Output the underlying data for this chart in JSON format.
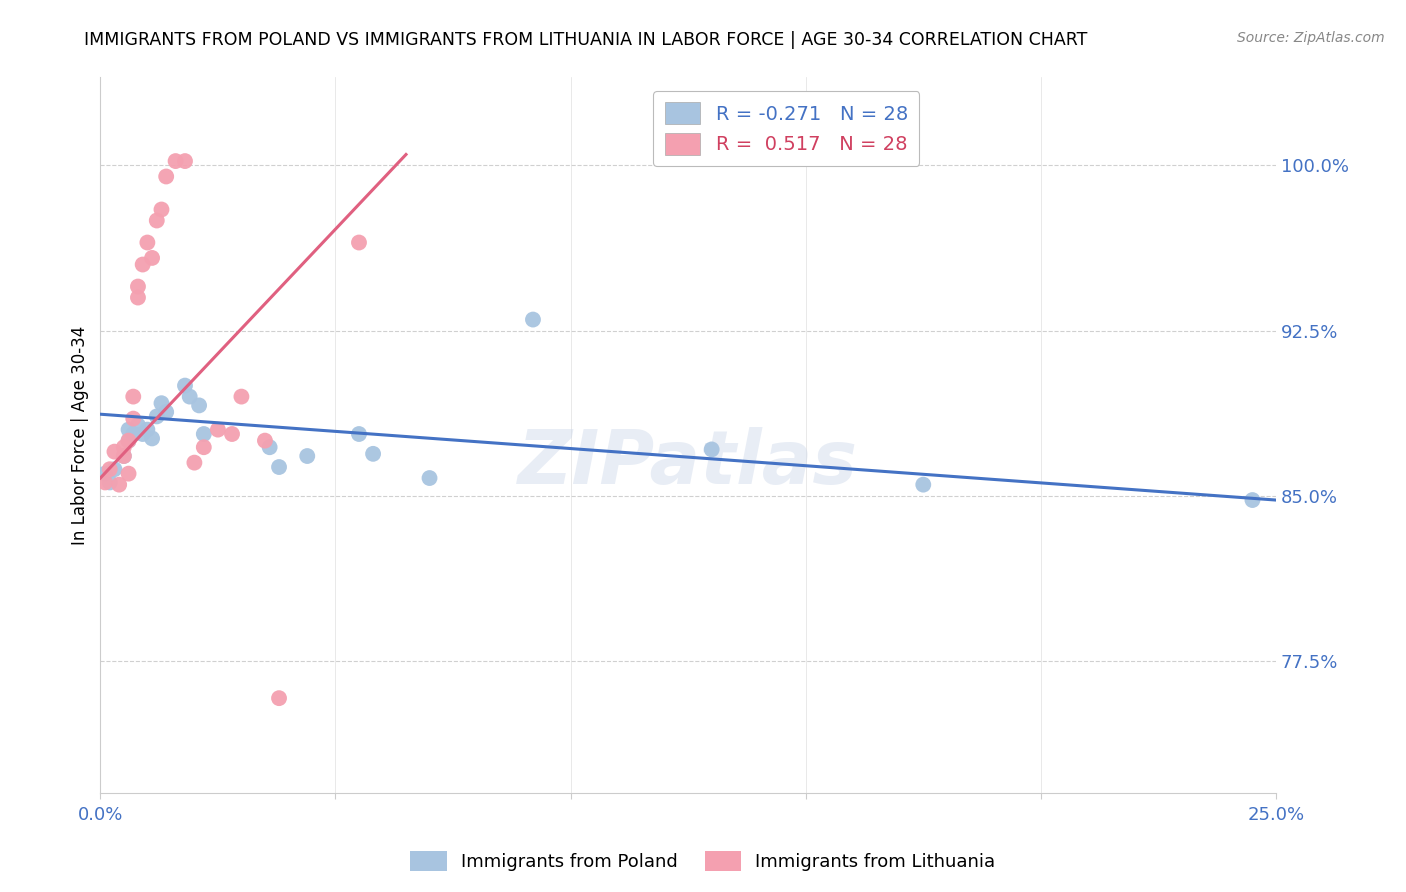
{
  "title": "IMMIGRANTS FROM POLAND VS IMMIGRANTS FROM LITHUANIA IN LABOR FORCE | AGE 30-34 CORRELATION CHART",
  "source": "Source: ZipAtlas.com",
  "ylabel": "In Labor Force | Age 30-34",
  "ytick_labels": [
    "100.0%",
    "92.5%",
    "85.0%",
    "77.5%"
  ],
  "ytick_values": [
    1.0,
    0.925,
    0.85,
    0.775
  ],
  "xlim": [
    0.0,
    0.25
  ],
  "ylim": [
    0.715,
    1.04
  ],
  "poland_color": "#a8c4e0",
  "lithuania_color": "#f4a0b0",
  "poland_line_color": "#4472c4",
  "lithuania_line_color": "#e06080",
  "legend_poland_R": "-0.271",
  "legend_poland_N": "28",
  "legend_lithuania_R": "0.517",
  "legend_lithuania_N": "28",
  "watermark": "ZIPatlas",
  "poland_x": [
    0.001,
    0.002,
    0.003,
    0.005,
    0.006,
    0.006,
    0.007,
    0.008,
    0.009,
    0.01,
    0.011,
    0.012,
    0.013,
    0.014,
    0.018,
    0.019,
    0.021,
    0.022,
    0.036,
    0.038,
    0.044,
    0.055,
    0.058,
    0.07,
    0.092,
    0.13,
    0.175,
    0.245
  ],
  "poland_y": [
    0.86,
    0.856,
    0.862,
    0.868,
    0.875,
    0.88,
    0.878,
    0.882,
    0.878,
    0.88,
    0.876,
    0.886,
    0.892,
    0.888,
    0.9,
    0.895,
    0.891,
    0.878,
    0.872,
    0.863,
    0.868,
    0.878,
    0.869,
    0.858,
    0.93,
    0.871,
    0.855,
    0.848
  ],
  "lithuania_x": [
    0.001,
    0.002,
    0.003,
    0.004,
    0.005,
    0.005,
    0.006,
    0.006,
    0.007,
    0.007,
    0.008,
    0.008,
    0.009,
    0.01,
    0.011,
    0.012,
    0.013,
    0.014,
    0.016,
    0.018,
    0.02,
    0.022,
    0.025,
    0.028,
    0.03,
    0.035,
    0.038,
    0.055
  ],
  "lithuania_y": [
    0.856,
    0.862,
    0.87,
    0.855,
    0.868,
    0.872,
    0.86,
    0.875,
    0.885,
    0.895,
    0.94,
    0.945,
    0.955,
    0.965,
    0.958,
    0.975,
    0.98,
    0.995,
    1.002,
    1.002,
    0.865,
    0.872,
    0.88,
    0.878,
    0.895,
    0.875,
    0.758,
    0.965
  ],
  "poland_trend_x": [
    0.0,
    0.25
  ],
  "poland_trend_y": [
    0.887,
    0.848
  ],
  "lithuania_trend_x0": 0.0,
  "lithuania_trend_x1": 0.065,
  "lithuania_trend_y0": 0.858,
  "lithuania_trend_y1": 1.005
}
